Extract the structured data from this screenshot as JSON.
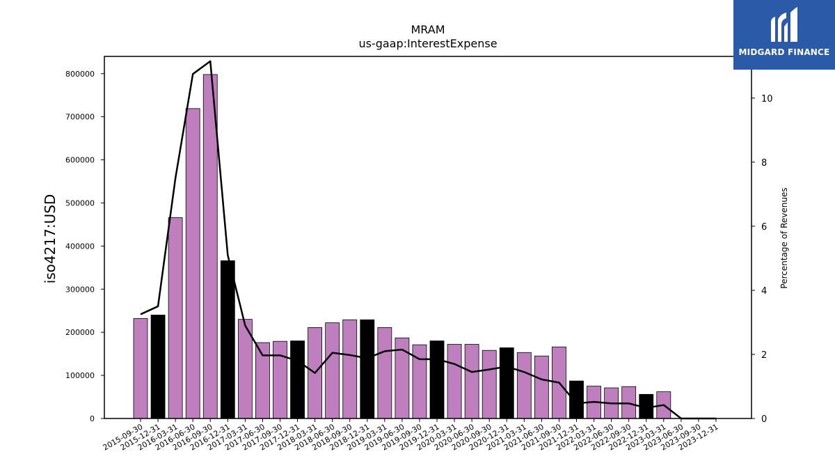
{
  "brand": {
    "name": "MIDGARD FINANCE",
    "bg_color": "#2b5aa8",
    "icon": "midgard-logo-icon"
  },
  "chart_data": {
    "type": "bar",
    "title": "MRAM",
    "subtitle": "us-gaap:InterestExpense",
    "ylabel": "iso4217:USD",
    "y2label": "Percentage of Revenues",
    "ylim": [
      0,
      840000
    ],
    "y2lim": [
      0,
      11.3
    ],
    "yticks": [
      0,
      100000,
      200000,
      300000,
      400000,
      500000,
      600000,
      700000,
      800000
    ],
    "y2ticks": [
      0,
      2,
      4,
      6,
      8,
      10
    ],
    "categories": [
      "2015-09-30",
      "2015-12-31",
      "2016-03-31",
      "2016-06-30",
      "2016-09-30",
      "2016-12-31",
      "2017-03-31",
      "2017-06-30",
      "2017-09-30",
      "2017-12-31",
      "2018-03-31",
      "2018-06-30",
      "2018-09-30",
      "2018-12-31",
      "2019-03-31",
      "2019-06-30",
      "2019-09-30",
      "2019-12-31",
      "2020-03-31",
      "2020-06-30",
      "2020-09-30",
      "2020-12-31",
      "2021-03-31",
      "2021-06-30",
      "2021-09-30",
      "2021-12-31",
      "2022-03-31",
      "2022-06-30",
      "2022-09-30",
      "2022-12-31",
      "2023-03-31",
      "2023-06-30",
      "2023-09-30",
      "2023-12-31"
    ],
    "series": [
      {
        "type": "bar",
        "values": [
          232000,
          240000,
          466000,
          719000,
          798000,
          366000,
          230000,
          176000,
          179000,
          180000,
          211000,
          222000,
          229000,
          229000,
          211000,
          187000,
          171000,
          180000,
          172000,
          172000,
          158000,
          164000,
          153000,
          145000,
          166000,
          87000,
          75000,
          71000,
          74000,
          56000,
          62000,
          0,
          0,
          0
        ],
        "year_end": [
          false,
          true,
          false,
          false,
          false,
          true,
          false,
          false,
          false,
          true,
          false,
          false,
          false,
          true,
          false,
          false,
          false,
          true,
          false,
          false,
          false,
          true,
          false,
          false,
          false,
          true,
          false,
          false,
          false,
          true,
          false,
          false,
          false,
          true
        ],
        "color": "#bf7fbf",
        "highlight_color": "#000000"
      },
      {
        "type": "line",
        "axis": "right",
        "values": [
          3.25,
          3.5,
          7.5,
          10.75,
          11.15,
          5.1,
          2.9,
          1.97,
          1.97,
          1.8,
          1.42,
          2.05,
          1.98,
          1.88,
          2.1,
          2.15,
          1.85,
          1.85,
          1.7,
          1.45,
          1.53,
          1.62,
          1.45,
          1.22,
          1.12,
          0.47,
          0.52,
          0.47,
          0.47,
          0.33,
          0.42,
          0,
          0,
          0
        ],
        "color": "#000000"
      }
    ],
    "grid": false,
    "legend": "none"
  }
}
